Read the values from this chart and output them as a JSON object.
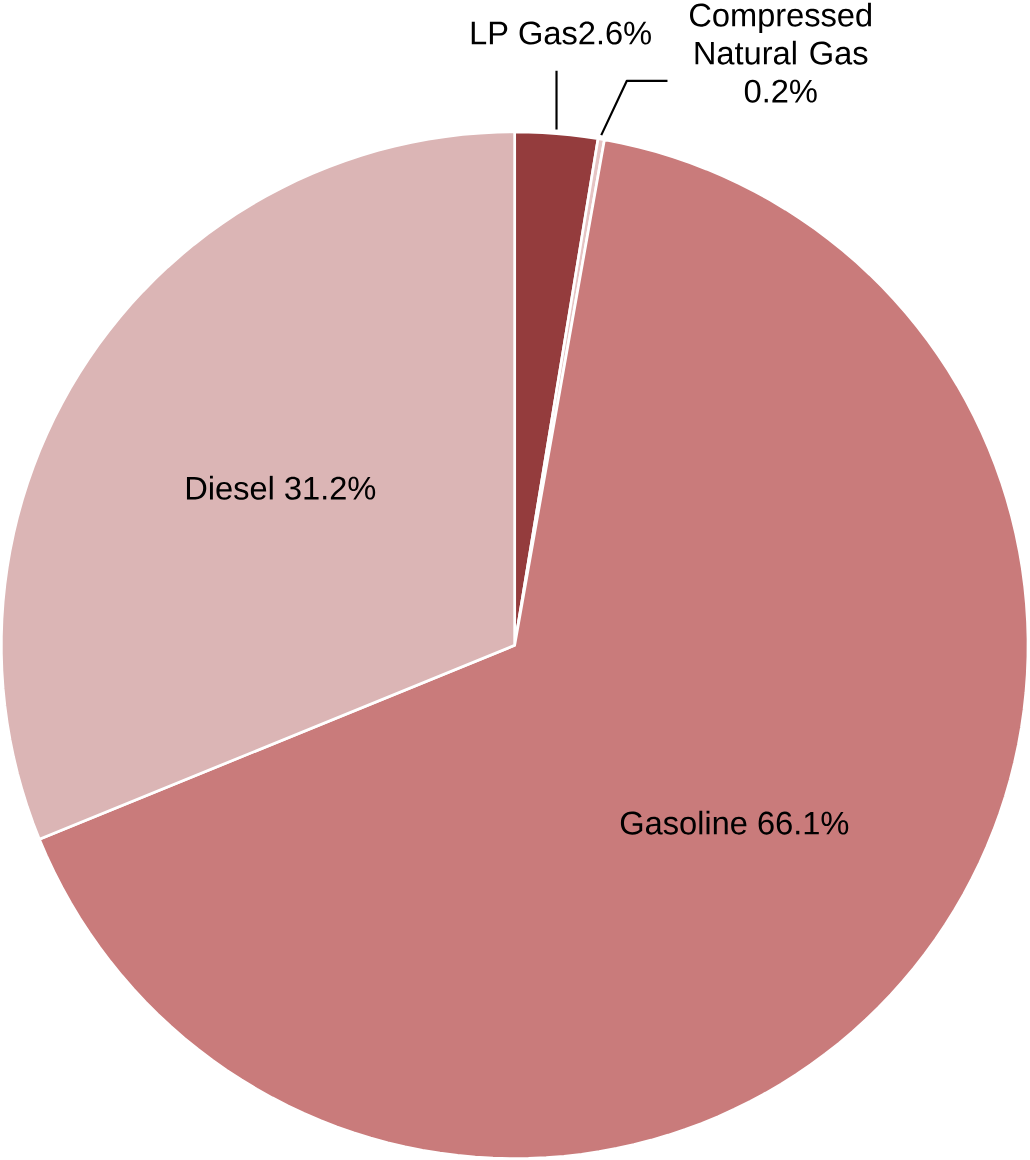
{
  "chart_data": {
    "type": "pie",
    "categories": [
      "LP Gas",
      "Compressed Natural Gas",
      "Gasoline",
      "Diesel"
    ],
    "values": [
      2.6,
      0.2,
      66.1,
      31.2
    ],
    "value_labels": [
      "2.6%",
      "0.2%",
      "66.1%",
      "31.2%"
    ],
    "colors": [
      "#943c3d",
      "#e6c4c4",
      "#c97b7b",
      "#dbb5b5"
    ]
  }
}
